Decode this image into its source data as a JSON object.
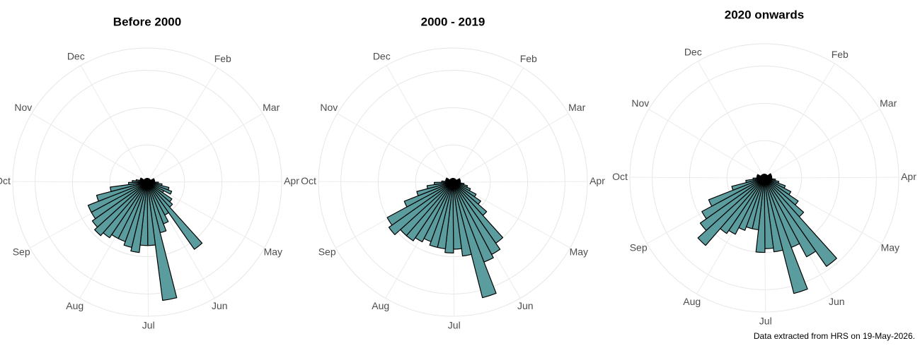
{
  "chart_data": [
    {
      "type": "polar-bar",
      "title": "Before 2000",
      "x": [
        0,
        7,
        14,
        21,
        28,
        35,
        42,
        49,
        56,
        63,
        70,
        77,
        84,
        91,
        98,
        105,
        112,
        119,
        126,
        133,
        140,
        147,
        154,
        161,
        168,
        175,
        182,
        189,
        196,
        203,
        210,
        217,
        224,
        231,
        238,
        245,
        252,
        259,
        266,
        273,
        280,
        287,
        294,
        301,
        308,
        315,
        322,
        329,
        336,
        343,
        350,
        357
      ],
      "bar_width": 7,
      "values": [
        1,
        1,
        1,
        1,
        1,
        1,
        1,
        1,
        1,
        2,
        2,
        2,
        2,
        3,
        4,
        6,
        7,
        5,
        8,
        9,
        22,
        10,
        12,
        14,
        32,
        17,
        17,
        19,
        18,
        17,
        17,
        18,
        19,
        18,
        17,
        17,
        14,
        10,
        5,
        4,
        3,
        2,
        2,
        2,
        1,
        1,
        1,
        1,
        1,
        1,
        1,
        1
      ],
      "color": "#5b9c9e",
      "xlim": [
        0,
        365
      ],
      "xticks": [
        {
          "value": 32,
          "label": "Feb"
        },
        {
          "value": 60,
          "label": "Mar"
        },
        {
          "value": 91,
          "label": "Apr"
        },
        {
          "value": 121,
          "label": "May"
        },
        {
          "value": 152,
          "label": "Jun"
        },
        {
          "value": 182,
          "label": "Jul"
        },
        {
          "value": 213,
          "label": "Aug"
        },
        {
          "value": 244,
          "label": "Sep"
        },
        {
          "value": 274,
          "label": "Oct"
        },
        {
          "value": 305,
          "label": "Nov"
        },
        {
          "value": 335,
          "label": "Dec"
        }
      ],
      "ylim": [
        0,
        36
      ],
      "yticks": [
        10,
        20,
        30
      ],
      "grid": true
    },
    {
      "type": "polar-bar",
      "title": "2000 - 2019",
      "x": [
        0,
        7,
        14,
        21,
        28,
        35,
        42,
        49,
        56,
        63,
        70,
        77,
        84,
        91,
        98,
        105,
        112,
        119,
        126,
        133,
        140,
        147,
        154,
        161,
        168,
        175,
        182,
        189,
        196,
        203,
        210,
        217,
        224,
        231,
        238,
        245,
        252,
        259,
        266,
        273,
        280,
        287,
        294,
        301,
        308,
        315,
        322,
        329,
        336,
        343,
        350,
        357
      ],
      "bar_width": 7,
      "values": [
        1,
        1,
        1,
        1,
        1,
        1,
        1,
        1,
        1,
        2,
        2,
        2,
        2,
        2,
        3,
        4,
        5,
        7,
        9,
        12,
        20,
        22,
        23,
        32,
        20,
        18,
        19,
        18,
        18,
        17,
        18,
        19,
        19,
        21,
        20,
        14,
        10,
        7,
        5,
        3,
        2,
        2,
        2,
        2,
        1,
        1,
        1,
        1,
        1,
        1,
        1,
        1
      ],
      "color": "#5b9c9e",
      "xlim": [
        0,
        365
      ],
      "xticks": [
        {
          "value": 32,
          "label": "Feb"
        },
        {
          "value": 60,
          "label": "Mar"
        },
        {
          "value": 91,
          "label": "Apr"
        },
        {
          "value": 121,
          "label": "May"
        },
        {
          "value": 152,
          "label": "Jun"
        },
        {
          "value": 182,
          "label": "Jul"
        },
        {
          "value": 213,
          "label": "Aug"
        },
        {
          "value": 244,
          "label": "Sep"
        },
        {
          "value": 274,
          "label": "Oct"
        },
        {
          "value": 305,
          "label": "Nov"
        },
        {
          "value": 335,
          "label": "Dec"
        }
      ],
      "ylim": [
        0,
        36
      ],
      "yticks": [
        10,
        20,
        30
      ],
      "grid": true
    },
    {
      "type": "polar-bar",
      "title": "2020 onwards",
      "x": [
        0,
        7,
        14,
        21,
        28,
        35,
        42,
        49,
        56,
        63,
        70,
        77,
        84,
        91,
        98,
        105,
        112,
        119,
        126,
        133,
        140,
        147,
        154,
        161,
        168,
        175,
        182,
        189,
        196,
        203,
        210,
        217,
        224,
        231,
        238,
        245,
        252,
        259,
        266,
        273,
        280,
        287,
        294,
        301,
        308,
        315,
        322,
        329,
        336,
        343,
        350,
        357
      ],
      "bar_width": 7,
      "values": [
        1,
        1,
        1,
        1,
        1,
        1,
        1,
        1,
        2,
        2,
        2,
        2,
        2,
        2,
        3,
        4,
        6,
        8,
        11,
        14,
        29,
        24,
        20,
        32,
        20,
        19,
        20,
        14,
        14,
        15,
        17,
        18,
        24,
        21,
        19,
        16,
        9,
        5,
        3,
        2,
        2,
        2,
        2,
        1,
        1,
        1,
        1,
        1,
        1,
        1,
        1,
        1
      ],
      "color": "#5b9c9e",
      "xlim": [
        0,
        365
      ],
      "xticks": [
        {
          "value": 32,
          "label": "Feb"
        },
        {
          "value": 60,
          "label": "Mar"
        },
        {
          "value": 91,
          "label": "Apr"
        },
        {
          "value": 121,
          "label": "May"
        },
        {
          "value": 152,
          "label": "Jun"
        },
        {
          "value": 182,
          "label": "Jul"
        },
        {
          "value": 213,
          "label": "Aug"
        },
        {
          "value": 244,
          "label": "Sep"
        },
        {
          "value": 274,
          "label": "Oct"
        },
        {
          "value": 305,
          "label": "Nov"
        },
        {
          "value": 335,
          "label": "Dec"
        }
      ],
      "ylim": [
        0,
        36
      ],
      "yticks": [
        10,
        20,
        30
      ],
      "grid": true
    }
  ],
  "footnote": "Data extracted from HRS on 19-May-2026."
}
